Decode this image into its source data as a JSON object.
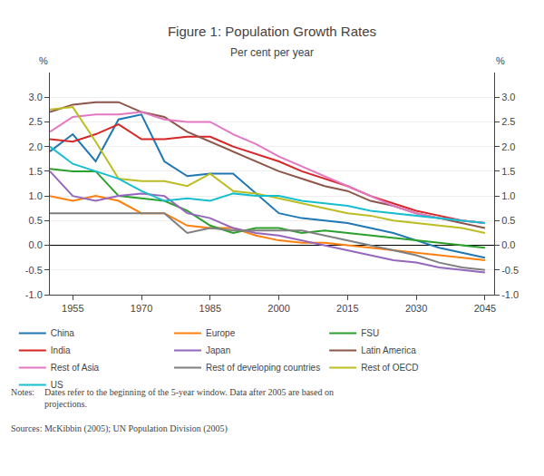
{
  "chart_data": {
    "type": "line",
    "title": "Figure 1: Population Growth Rates",
    "subtitle": "Per cent per year",
    "ylabel": "%",
    "y2label": "%",
    "x": [
      1950,
      1955,
      1960,
      1965,
      1970,
      1975,
      1980,
      1985,
      1990,
      1995,
      2000,
      2005,
      2010,
      2015,
      2020,
      2025,
      2030,
      2035,
      2040,
      2045
    ],
    "series": [
      {
        "name": "China",
        "values": [
          1.9,
          2.25,
          1.7,
          2.55,
          2.65,
          1.7,
          1.4,
          1.45,
          1.45,
          1.05,
          0.65,
          0.55,
          0.5,
          0.45,
          0.35,
          0.25,
          0.1,
          -0.05,
          -0.15,
          -0.25
        ]
      },
      {
        "name": "Europe",
        "values": [
          1.0,
          0.9,
          1.0,
          0.9,
          0.65,
          0.65,
          0.4,
          0.35,
          0.35,
          0.2,
          0.1,
          0.05,
          0.05,
          0.0,
          -0.05,
          -0.1,
          -0.15,
          -0.2,
          -0.25,
          -0.3
        ]
      },
      {
        "name": "FSU",
        "values": [
          1.55,
          1.5,
          1.5,
          1.0,
          0.95,
          0.9,
          0.7,
          0.4,
          0.25,
          0.35,
          0.35,
          0.25,
          0.3,
          0.25,
          0.2,
          0.15,
          0.1,
          0.05,
          0.0,
          -0.05
        ]
      },
      {
        "name": "India",
        "values": [
          2.15,
          2.1,
          2.25,
          2.45,
          2.15,
          2.15,
          2.2,
          2.2,
          2.0,
          1.85,
          1.7,
          1.5,
          1.35,
          1.2,
          1.0,
          0.85,
          0.7,
          0.6,
          0.5,
          0.45
        ]
      },
      {
        "name": "Japan",
        "values": [
          1.5,
          1.0,
          0.9,
          1.0,
          1.05,
          1.0,
          0.65,
          0.55,
          0.35,
          0.25,
          0.2,
          0.1,
          0.0,
          -0.1,
          -0.2,
          -0.3,
          -0.35,
          -0.45,
          -0.5,
          -0.55
        ]
      },
      {
        "name": "Latin America",
        "values": [
          2.7,
          2.85,
          2.9,
          2.9,
          2.7,
          2.6,
          2.3,
          2.1,
          1.9,
          1.7,
          1.5,
          1.35,
          1.2,
          1.1,
          0.9,
          0.8,
          0.65,
          0.55,
          0.45,
          0.35
        ]
      },
      {
        "name": "Rest of Asia",
        "values": [
          2.3,
          2.6,
          2.65,
          2.65,
          2.7,
          2.55,
          2.5,
          2.5,
          2.25,
          2.05,
          1.8,
          1.6,
          1.4,
          1.2,
          1.0,
          0.8,
          0.65,
          0.55,
          0.5,
          0.45
        ]
      },
      {
        "name": "Rest of developing countries",
        "values": [
          0.65,
          0.65,
          0.65,
          0.65,
          0.65,
          0.65,
          0.25,
          0.35,
          0.3,
          0.3,
          0.3,
          0.3,
          0.2,
          0.1,
          0.0,
          -0.1,
          -0.2,
          -0.35,
          -0.45,
          -0.5
        ]
      },
      {
        "name": "Rest of OECD",
        "values": [
          2.75,
          2.8,
          2.1,
          1.35,
          1.3,
          1.3,
          1.2,
          1.45,
          1.1,
          1.05,
          0.95,
          0.85,
          0.75,
          0.65,
          0.6,
          0.5,
          0.45,
          0.4,
          0.35,
          0.25
        ]
      },
      {
        "name": "US",
        "values": [
          2.0,
          1.65,
          1.5,
          1.35,
          1.1,
          0.9,
          0.95,
          0.9,
          1.05,
          1.0,
          1.0,
          0.9,
          0.85,
          0.8,
          0.7,
          0.65,
          0.6,
          0.55,
          0.5,
          0.45
        ]
      }
    ],
    "xlim": [
      1950,
      2047
    ],
    "xticks": [
      1955,
      1970,
      1985,
      2000,
      2015,
      2030,
      2045
    ],
    "ylim": [
      -1.0,
      3.5
    ],
    "yticks": [
      {
        "value": -1.0,
        "label": "-1.0"
      },
      -0.5,
      {
        "value": 0.0,
        "label": "0.0"
      },
      0.5,
      {
        "value": 1.0,
        "label": "1.0"
      },
      1.5,
      {
        "value": 2.0,
        "label": "2.0"
      },
      2.5,
      {
        "value": 3.0,
        "label": "3.0"
      }
    ],
    "y2lim": [
      -1.0,
      3.5
    ],
    "y2ticks": [
      {
        "value": -1.0,
        "label": "-1.0"
      },
      -0.5,
      {
        "value": 0.0,
        "label": "0.0"
      },
      0.5,
      {
        "value": 1.0,
        "label": "1.0"
      },
      1.5,
      {
        "value": 2.0,
        "label": "2.0"
      },
      2.5,
      {
        "value": 3.0,
        "label": "3.0"
      }
    ],
    "grid": true,
    "legend": "bottom",
    "annotations": [
      "Notes:",
      "Dates refer to the beginning of the 5-year window. Data after 2005 are based on\nprojections.",
      "Sources: McKibbin (2005); UN Population Division (2005)"
    ]
  }
}
